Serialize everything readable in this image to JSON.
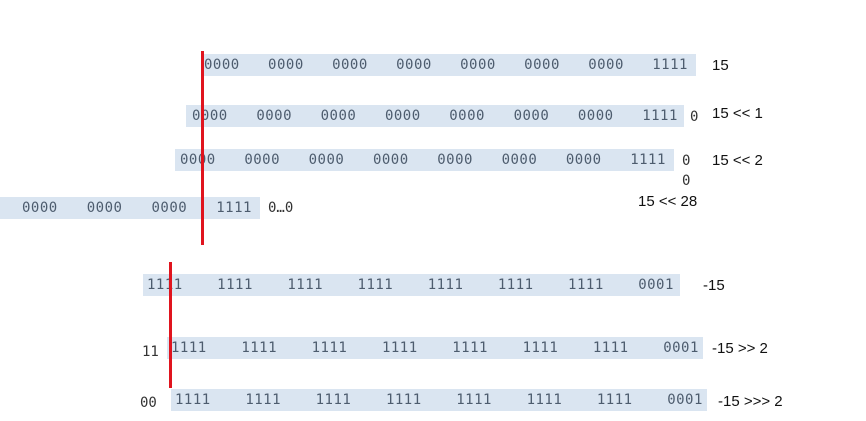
{
  "rows": [
    {
      "id": "r1",
      "groups": [
        "0000",
        "0000",
        "0000",
        "0000",
        "0000",
        "0000",
        "0000",
        "1111"
      ],
      "suffix": "",
      "label": "15"
    },
    {
      "id": "r2",
      "groups": [
        "0000",
        "0000",
        "0000",
        "0000",
        "0000",
        "0000",
        "0000",
        "1111"
      ],
      "suffix": "0",
      "label": "15 << 1"
    },
    {
      "id": "r3",
      "groups": [
        "0000",
        "0000",
        "0000",
        "0000",
        "0000",
        "0000",
        "0000",
        "1111"
      ],
      "suffix": "0",
      "label": "15 << 2"
    },
    {
      "id": "r4",
      "groups": [
        "0000",
        "0000",
        "0000",
        "1111"
      ],
      "suffix": "0…0",
      "label": "15 << 28"
    },
    {
      "id": "r5",
      "groups": [
        "1111",
        "1111",
        "1111",
        "1111",
        "1111",
        "1111",
        "1111",
        "0001"
      ],
      "prefix": "",
      "label": "-15"
    },
    {
      "id": "r6",
      "groups": [
        "1111",
        "1111",
        "1111",
        "1111",
        "1111",
        "1111",
        "1111",
        "0001"
      ],
      "prefix": "11",
      "label": "-15 >> 2"
    },
    {
      "id": "r7",
      "groups": [
        "1111",
        "1111",
        "1111",
        "1111",
        "1111",
        "1111",
        "1111",
        "0001"
      ],
      "prefix": "00",
      "label": "-15 >>> 2"
    }
  ],
  "extra_zero": "0",
  "colors": {
    "band": "#dae5f1",
    "line": "#e0141e"
  }
}
